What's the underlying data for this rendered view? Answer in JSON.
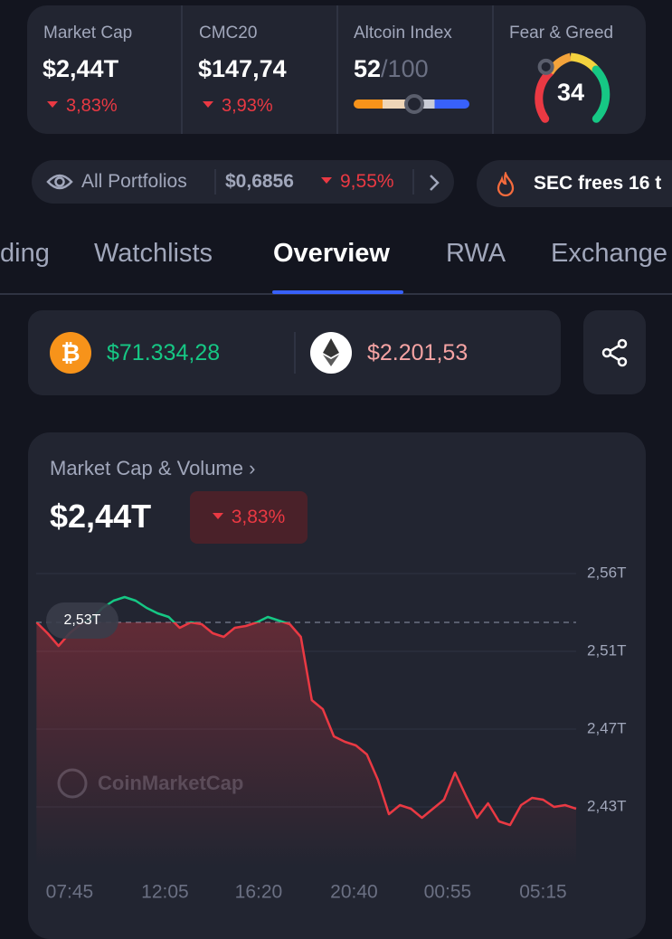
{
  "stats": [
    {
      "label": "Market Cap",
      "value": "$2,44T",
      "change": "3,83%"
    },
    {
      "label": "CMC20",
      "value": "$147,74",
      "change": "3,93%"
    }
  ],
  "altcoin": {
    "label": "Altcoin Index",
    "value": "52",
    "max": "/100"
  },
  "fear_greed": {
    "label": "Fear & Greed",
    "value": "34"
  },
  "portfolio": {
    "label": "All Portfolios",
    "value": "$0,6856",
    "change": "9,55%"
  },
  "news": "SEC frees 16 t",
  "tabs": [
    "ding",
    "Watchlists",
    "Overview",
    "RWA",
    "Exchange"
  ],
  "prices": [
    {
      "value": "$71.334,28"
    },
    {
      "value": "$2.201,53"
    }
  ],
  "chart_data": {
    "type": "line",
    "title": "Market Cap & Volume",
    "value": "$2,44T",
    "change": "3,83%",
    "watermark": "CoinMarketCap",
    "grid": true,
    "x": [
      375,
      405,
      435,
      465,
      495,
      525,
      555,
      585,
      615,
      645,
      675,
      705,
      735,
      765,
      795,
      825,
      855,
      885,
      915,
      945,
      975,
      1005,
      1035,
      1065,
      1095,
      1125,
      1155,
      1185,
      1215,
      1245,
      1275,
      1305,
      1335,
      1365,
      1395,
      1425,
      1455,
      1485,
      1515,
      1545,
      1575,
      1605,
      1635,
      1665,
      1695,
      1725,
      1755,
      1785,
      1815,
      1845
    ],
    "series": [
      {
        "color": "#ea3943",
        "up_color": "#16c784",
        "values": [
          2.528,
          2.522,
          2.515,
          2.522,
          2.527,
          2.53,
          2.536,
          2.54,
          2.542,
          2.54,
          2.536,
          2.533,
          2.531,
          2.525,
          2.528,
          2.527,
          2.522,
          2.52,
          2.525,
          2.526,
          2.528,
          2.531,
          2.529,
          2.527,
          2.52,
          2.485,
          2.48,
          2.465,
          2.462,
          2.46,
          2.455,
          2.441,
          2.422,
          2.427,
          2.425,
          2.42,
          2.425,
          2.43,
          2.445,
          2.432,
          2.42,
          2.428,
          2.418,
          2.416,
          2.427,
          2.431,
          2.43,
          2.426,
          2.427,
          2.425
        ]
      }
    ],
    "reference": {
      "value": 2.528,
      "label": "2,53T"
    },
    "xlim": [
      374,
      1845
    ],
    "ylim": [
      2.393,
      2.555
    ],
    "xticks": [
      {
        "value": 465,
        "label": "07:45"
      },
      {
        "value": 725,
        "label": "12:05"
      },
      {
        "value": 980,
        "label": "16:20"
      },
      {
        "value": 1240,
        "label": "20:40"
      },
      {
        "value": 1495,
        "label": "00:55"
      },
      {
        "value": 1755,
        "label": "05:15"
      }
    ],
    "yticks": [
      {
        "value": 2.426,
        "label": "2,43T"
      },
      {
        "value": 2.469,
        "label": "2,47T"
      },
      {
        "value": 2.512,
        "label": "2,51T"
      },
      {
        "value": 2.555,
        "label": "2,56T"
      }
    ]
  }
}
